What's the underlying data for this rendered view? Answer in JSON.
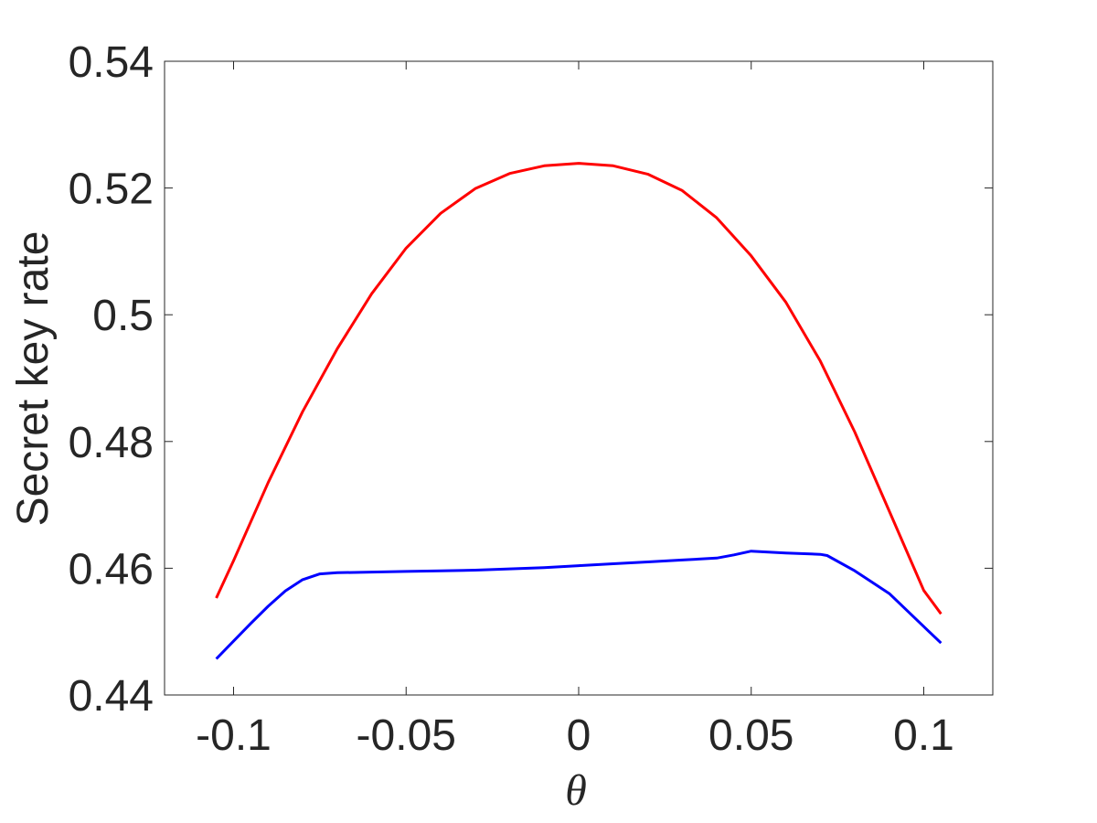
{
  "chart_data": {
    "type": "line",
    "title": "",
    "xlabel": "θ",
    "ylabel": "Secret key rate",
    "xlim": [
      -0.12,
      0.12
    ],
    "ylim": [
      0.44,
      0.54
    ],
    "x_ticks": [
      -0.1,
      -0.05,
      0,
      0.05,
      0.1
    ],
    "x_tick_labels": [
      "-0.1",
      "-0.05",
      "0",
      "0.05",
      "0.1"
    ],
    "y_ticks": [
      0.44,
      0.46,
      0.48,
      0.5,
      0.52,
      0.54
    ],
    "y_tick_labels": [
      "0.44",
      "0.46",
      "0.48",
      "0.5",
      "0.52",
      "0.54"
    ],
    "grid": false,
    "legend": "none",
    "series": [
      {
        "color": "#ff0000",
        "x": [
          -0.105,
          -0.1,
          -0.09,
          -0.08,
          -0.07,
          -0.06,
          -0.05,
          -0.04,
          -0.03,
          -0.02,
          -0.01,
          0,
          0.01,
          0.02,
          0.03,
          0.04,
          0.05,
          0.06,
          0.07,
          0.08,
          0.09,
          0.1,
          0.105
        ],
        "values": [
          0.4553,
          0.4612,
          0.4735,
          0.4847,
          0.4946,
          0.5033,
          0.5105,
          0.516,
          0.5199,
          0.5223,
          0.5235,
          0.5239,
          0.5235,
          0.5222,
          0.5196,
          0.5153,
          0.5093,
          0.502,
          0.4927,
          0.4815,
          0.469,
          0.4565,
          0.4528
        ]
      },
      {
        "color": "#0000ff",
        "x": [
          -0.105,
          -0.1,
          -0.095,
          -0.09,
          -0.085,
          -0.08,
          -0.075,
          -0.07,
          -0.06,
          -0.05,
          -0.04,
          -0.03,
          -0.02,
          -0.01,
          0,
          0.01,
          0.02,
          0.03,
          0.04,
          0.045,
          0.05,
          0.06,
          0.07,
          0.072,
          0.08,
          0.09,
          0.1,
          0.105
        ],
        "values": [
          0.4457,
          0.4485,
          0.4513,
          0.454,
          0.4564,
          0.4582,
          0.4591,
          0.4593,
          0.4594,
          0.4595,
          0.4596,
          0.4597,
          0.4599,
          0.4601,
          0.4604,
          0.4607,
          0.461,
          0.4613,
          0.4616,
          0.4621,
          0.4627,
          0.4624,
          0.4622,
          0.462,
          0.4596,
          0.456,
          0.4508,
          0.4482
        ]
      }
    ]
  }
}
